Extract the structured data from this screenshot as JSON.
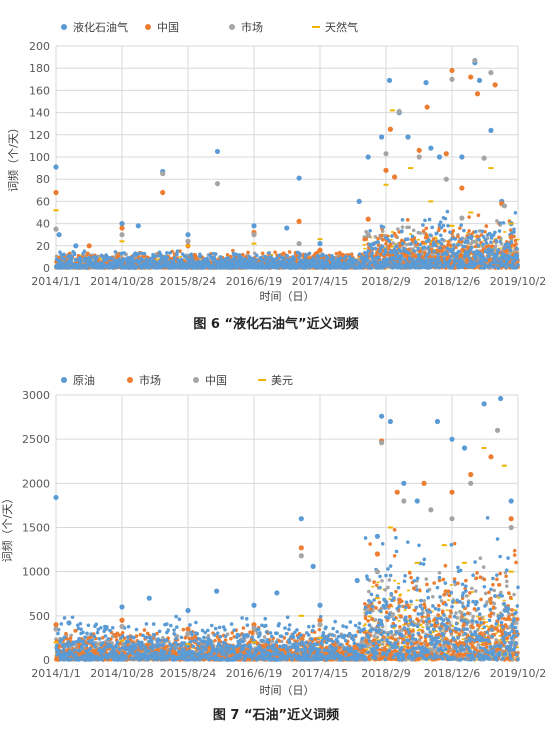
{
  "chart_data": [
    {
      "type": "scatter",
      "title": "",
      "caption": "图 6 “液化石油气”近义词频",
      "xlabel": "时间（日）",
      "ylabel": "词频（个/天）",
      "ylim": [
        0,
        200
      ],
      "yticks": [
        0,
        20,
        40,
        60,
        80,
        100,
        120,
        140,
        160,
        180,
        200
      ],
      "xticks": [
        "2014/1/1",
        "2014/10/28",
        "2015/8/24",
        "2016/6/19",
        "2017/4/15",
        "2018/2/9",
        "2018/12/6",
        "2019/10/2"
      ],
      "grid": true,
      "legend_position": "top-left",
      "series": [
        {
          "name": "液化石油气",
          "color": "#5b9bd5",
          "points": [
            [
              "2014/1/1",
              91
            ],
            [
              "2014/1/15",
              30
            ],
            [
              "2014/4/1",
              20
            ],
            [
              "2014/10/28",
              40
            ],
            [
              "2015/1/10",
              38
            ],
            [
              "2015/5/1",
              87
            ],
            [
              "2015/8/24",
              30
            ],
            [
              "2016/1/5",
              105
            ],
            [
              "2016/6/19",
              38
            ],
            [
              "2016/11/15",
              36
            ],
            [
              "2017/1/10",
              81
            ],
            [
              "2017/4/15",
              22
            ],
            [
              "2017/10/10",
              60
            ],
            [
              "2017/11/20",
              100
            ],
            [
              "2018/1/20",
              118
            ],
            [
              "2018/2/25",
              169
            ],
            [
              "2018/4/10",
              140
            ],
            [
              "2018/5/20",
              118
            ],
            [
              "2018/8/10",
              167
            ],
            [
              "2018/9/1",
              108
            ],
            [
              "2018/10/10",
              100
            ],
            [
              "2019/1/20",
              100
            ],
            [
              "2019/3/20",
              185
            ],
            [
              "2019/4/10",
              169
            ],
            [
              "2019/6/1",
              124
            ],
            [
              "2019/7/20",
              60
            ],
            [
              "2019/9/1",
              40
            ]
          ]
        },
        {
          "name": "中国",
          "color": "#ed7d31",
          "points": [
            [
              "2014/1/1",
              68
            ],
            [
              "2014/6/1",
              20
            ],
            [
              "2014/10/28",
              36
            ],
            [
              "2015/5/1",
              68
            ],
            [
              "2015/8/24",
              20
            ],
            [
              "2016/6/19",
              32
            ],
            [
              "2017/1/10",
              42
            ],
            [
              "2017/4/15",
              16
            ],
            [
              "2017/11/20",
              44
            ],
            [
              "2018/2/9",
              88
            ],
            [
              "2018/3/1",
              125
            ],
            [
              "2018/3/20",
              82
            ],
            [
              "2018/7/10",
              106
            ],
            [
              "2018/8/15",
              145
            ],
            [
              "2018/11/10",
              103
            ],
            [
              "2018/12/6",
              178
            ],
            [
              "2019/1/20",
              72
            ],
            [
              "2019/3/1",
              172
            ],
            [
              "2019/4/1",
              157
            ],
            [
              "2019/6/20",
              165
            ],
            [
              "2019/7/20",
              58
            ],
            [
              "2019/9/1",
              28
            ]
          ]
        },
        {
          "name": "市场",
          "color": "#a5a5a5",
          "points": [
            [
              "2014/1/1",
              35
            ],
            [
              "2014/10/28",
              30
            ],
            [
              "2015/5/1",
              85
            ],
            [
              "2015/8/24",
              24
            ],
            [
              "2016/1/5",
              76
            ],
            [
              "2016/6/19",
              30
            ],
            [
              "2017/1/10",
              22
            ],
            [
              "2017/11/20",
              30
            ],
            [
              "2018/2/9",
              103
            ],
            [
              "2018/4/10",
              141
            ],
            [
              "2018/7/10",
              100
            ],
            [
              "2018/11/10",
              80
            ],
            [
              "2018/12/6",
              170
            ],
            [
              "2019/1/20",
              45
            ],
            [
              "2019/3/20",
              187
            ],
            [
              "2019/5/1",
              99
            ],
            [
              "2019/6/1",
              176
            ],
            [
              "2019/8/1",
              56
            ]
          ]
        },
        {
          "name": "天然气",
          "color": "#f0b400",
          "points": [
            [
              "2014/1/1",
              52
            ],
            [
              "2014/10/28",
              24
            ],
            [
              "2015/8/24",
              20
            ],
            [
              "2016/6/19",
              22
            ],
            [
              "2017/4/15",
              26
            ],
            [
              "2018/2/9",
              75
            ],
            [
              "2018/3/10",
              142
            ],
            [
              "2018/6/1",
              90
            ],
            [
              "2018/9/1",
              60
            ],
            [
              "2018/12/6",
              38
            ],
            [
              "2019/3/1",
              50
            ],
            [
              "2019/6/1",
              90
            ],
            [
              "2019/9/1",
              40
            ]
          ]
        }
      ]
    },
    {
      "type": "scatter",
      "title": "",
      "caption": "图 7 “石油”近义词频",
      "xlabel": "时间（日）",
      "ylabel": "词频（个/天）",
      "ylim": [
        0,
        3000
      ],
      "yticks": [
        0,
        500,
        1000,
        1500,
        2000,
        2500,
        3000
      ],
      "xticks": [
        "2014/1/1",
        "2014/10/28",
        "2015/8/24",
        "2016/6/19",
        "2017/4/15",
        "2018/2/9",
        "2018/12/6",
        "2019/10/2"
      ],
      "grid": true,
      "legend_position": "top-left",
      "series": [
        {
          "name": "原油",
          "color": "#5b9bd5",
          "points": [
            [
              "2014/1/1",
              1840
            ],
            [
              "2014/3/1",
              420
            ],
            [
              "2014/10/28",
              600
            ],
            [
              "2015/3/1",
              700
            ],
            [
              "2015/8/24",
              560
            ],
            [
              "2016/1/1",
              780
            ],
            [
              "2016/6/19",
              620
            ],
            [
              "2016/10/1",
              760
            ],
            [
              "2017/1/20",
              1600
            ],
            [
              "2017/3/15",
              1060
            ],
            [
              "2017/4/15",
              620
            ],
            [
              "2017/10/1",
              900
            ],
            [
              "2018/1/1",
              1400
            ],
            [
              "2018/1/20",
              2760
            ],
            [
              "2018/3/1",
              2700
            ],
            [
              "2018/5/1",
              2000
            ],
            [
              "2018/7/1",
              1800
            ],
            [
              "2018/10/1",
              2700
            ],
            [
              "2018/12/6",
              2500
            ],
            [
              "2019/2/1",
              2400
            ],
            [
              "2019/5/1",
              2900
            ],
            [
              "2019/7/15",
              2960
            ],
            [
              "2019/9/1",
              1800
            ]
          ]
        },
        {
          "name": "市场",
          "color": "#ed7d31",
          "points": [
            [
              "2014/1/1",
              400
            ],
            [
              "2014/10/28",
              450
            ],
            [
              "2015/8/24",
              350
            ],
            [
              "2016/6/19",
              400
            ],
            [
              "2017/1/20",
              1270
            ],
            [
              "2017/4/15",
              450
            ],
            [
              "2018/1/1",
              1200
            ],
            [
              "2018/1/20",
              2480
            ],
            [
              "2018/4/1",
              1900
            ],
            [
              "2018/8/1",
              2000
            ],
            [
              "2018/12/6",
              1900
            ],
            [
              "2019/3/1",
              2100
            ],
            [
              "2019/6/1",
              2300
            ],
            [
              "2019/9/1",
              1600
            ]
          ]
        },
        {
          "name": "中国",
          "color": "#a5a5a5",
          "points": [
            [
              "2014/1/1",
              350
            ],
            [
              "2014/10/28",
              380
            ],
            [
              "2015/8/24",
              300
            ],
            [
              "2016/6/19",
              360
            ],
            [
              "2017/1/20",
              1180
            ],
            [
              "2017/4/15",
              400
            ],
            [
              "2018/1/1",
              1000
            ],
            [
              "2018/1/20",
              2460
            ],
            [
              "2018/5/1",
              1800
            ],
            [
              "2018/9/1",
              1700
            ],
            [
              "2018/12/6",
              1600
            ],
            [
              "2019/3/1",
              2000
            ],
            [
              "2019/7/1",
              2600
            ],
            [
              "2019/9/1",
              1500
            ]
          ]
        },
        {
          "name": "美元",
          "color": "#f0b400",
          "points": [
            [
              "2014/1/1",
              200
            ],
            [
              "2014/10/28",
              220
            ],
            [
              "2015/8/24",
              180
            ],
            [
              "2016/6/19",
              200
            ],
            [
              "2017/1/20",
              500
            ],
            [
              "2017/4/15",
              250
            ],
            [
              "2018/1/1",
              700
            ],
            [
              "2018/3/1",
              1500
            ],
            [
              "2018/7/1",
              1100
            ],
            [
              "2018/11/1",
              1300
            ],
            [
              "2019/2/1",
              1100
            ],
            [
              "2019/5/1",
              2400
            ],
            [
              "2019/8/1",
              2200
            ],
            [
              "2019/9/1",
              1000
            ]
          ]
        }
      ]
    }
  ]
}
